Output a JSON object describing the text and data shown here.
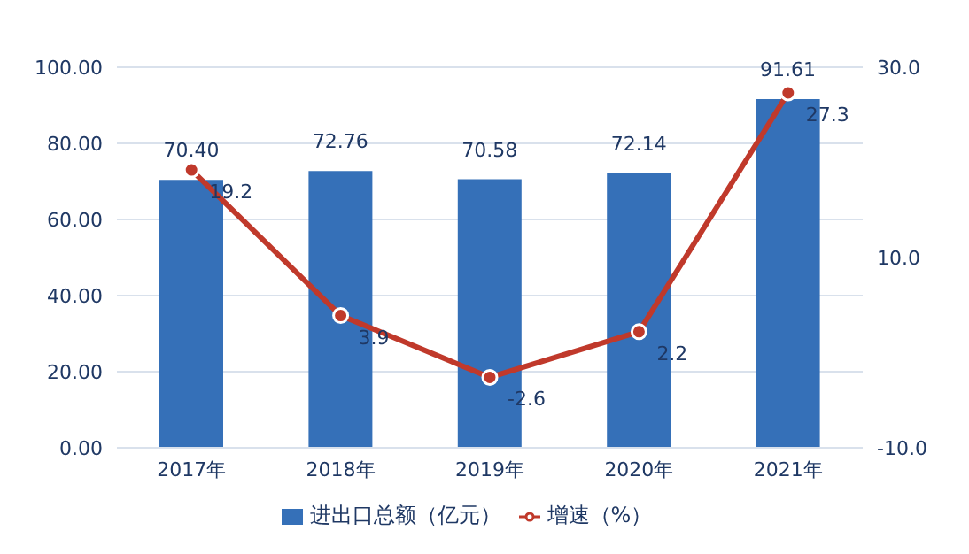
{
  "chart_data": {
    "type": "bar",
    "categories": [
      "2017年",
      "2018年",
      "2019年",
      "2020年",
      "2021年"
    ],
    "series": [
      {
        "name": "进出口总额（亿元）",
        "color": "#3570b8",
        "values": [
          70.4,
          72.76,
          70.58,
          72.14,
          91.61
        ],
        "value_labels": [
          "70.40",
          "72.76",
          "70.58",
          "72.14",
          "91.61"
        ]
      },
      {
        "name": "增速（%）",
        "type": "line",
        "axis": "y2",
        "color": "#c0392b",
        "values": [
          19.2,
          3.9,
          -2.6,
          2.2,
          27.3
        ],
        "value_labels": [
          "19.2",
          "3.9",
          "-2.6",
          "2.2",
          "27.3"
        ]
      }
    ],
    "ylim": [
      0,
      100
    ],
    "yticks": [
      {
        "value": 0,
        "label": "0.00"
      },
      {
        "value": 20,
        "label": "20.00"
      },
      {
        "value": 40,
        "label": "40.00"
      },
      {
        "value": 60,
        "label": "60.00"
      },
      {
        "value": 80,
        "label": "80.00"
      },
      {
        "value": 100,
        "label": "100.00"
      }
    ],
    "y2lim": [
      -10,
      30
    ],
    "y2ticks": [
      {
        "value": -10,
        "label": "-10.0"
      },
      {
        "value": 10,
        "label": "10.0"
      },
      {
        "value": 30,
        "label": "30.0"
      }
    ],
    "grid": "y",
    "legend": "bottom",
    "marker": "circle"
  }
}
